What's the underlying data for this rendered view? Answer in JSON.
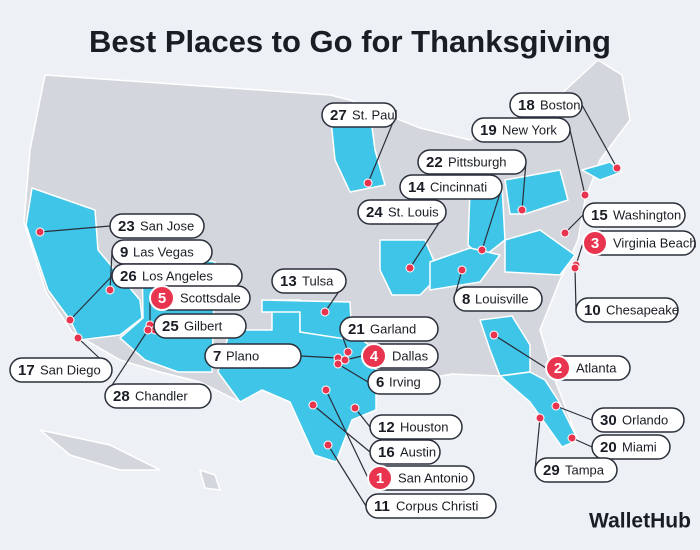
{
  "title": "Best Places to Go for Thanksgiving",
  "places": [
    {
      "rank": 27,
      "city": "St. Paul"
    },
    {
      "rank": 18,
      "city": "Boston"
    },
    {
      "rank": 19,
      "city": "New York"
    },
    {
      "rank": 22,
      "city": "Pittsburgh"
    },
    {
      "rank": 14,
      "city": "Cincinnati"
    },
    {
      "rank": 24,
      "city": "St. Louis"
    },
    {
      "rank": 23,
      "city": "San Jose"
    },
    {
      "rank": 15,
      "city": "Washington"
    },
    {
      "rank": 9,
      "city": "Las Vegas"
    },
    {
      "rank": 3,
      "city": "Virginia Beach"
    },
    {
      "rank": 26,
      "city": "Los Angeles"
    },
    {
      "rank": 13,
      "city": "Tulsa"
    },
    {
      "rank": 8,
      "city": "Louisville"
    },
    {
      "rank": 5,
      "city": "Scottsdale"
    },
    {
      "rank": 25,
      "city": "Gilbert"
    },
    {
      "rank": 21,
      "city": "Garland"
    },
    {
      "rank": 10,
      "city": "Chesapeake"
    },
    {
      "rank": 7,
      "city": "Plano"
    },
    {
      "rank": 4,
      "city": "Dallas"
    },
    {
      "rank": 17,
      "city": "San Diego"
    },
    {
      "rank": 2,
      "city": "Atlanta"
    },
    {
      "rank": 6,
      "city": "Irving"
    },
    {
      "rank": 28,
      "city": "Chandler"
    },
    {
      "rank": 30,
      "city": "Orlando"
    },
    {
      "rank": 12,
      "city": "Houston"
    },
    {
      "rank": 20,
      "city": "Miami"
    },
    {
      "rank": 16,
      "city": "Austin"
    },
    {
      "rank": 29,
      "city": "Tampa"
    },
    {
      "rank": 1,
      "city": "San Antonio"
    },
    {
      "rank": 11,
      "city": "Corpus Christi"
    }
  ],
  "brand": "WalletHub"
}
